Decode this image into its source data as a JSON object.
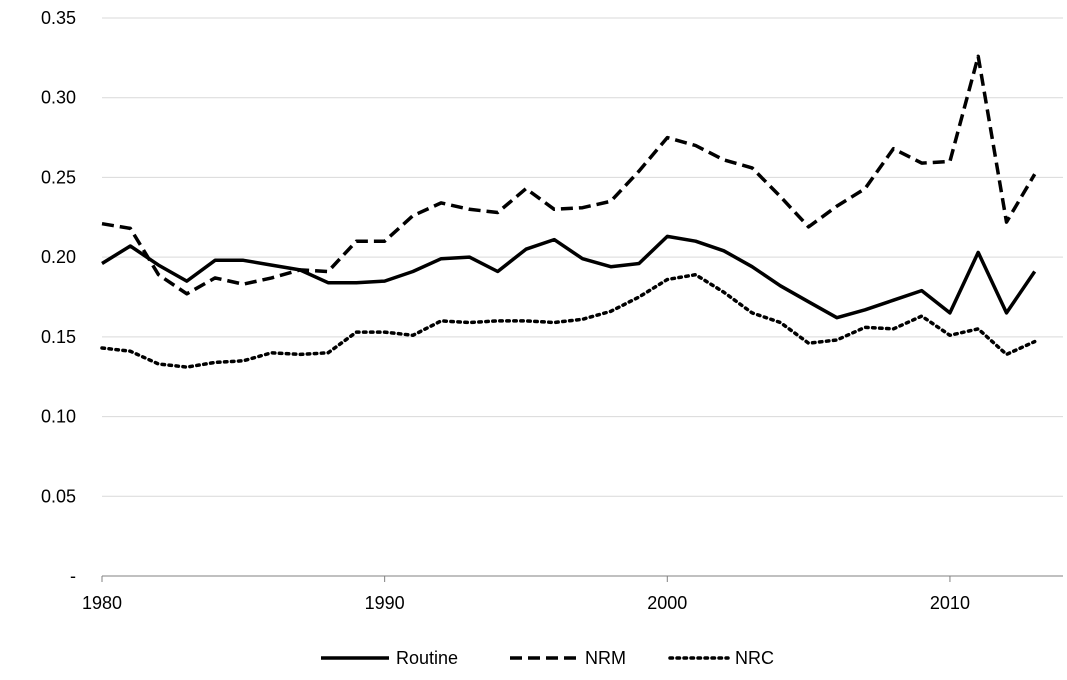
{
  "chart_data": {
    "type": "line",
    "title": "",
    "xlabel": "",
    "ylabel": "",
    "xlim": [
      1980,
      2014
    ],
    "ylim": [
      0,
      0.35
    ],
    "x_ticks": [
      1980,
      1990,
      2000,
      2010
    ],
    "x_tick_labels": [
      "1980",
      "1990",
      "2000",
      "2010"
    ],
    "y_ticks": [
      0,
      0.05,
      0.1,
      0.15,
      0.2,
      0.25,
      0.3,
      0.35
    ],
    "y_tick_labels": [
      "-",
      "0.05",
      "0.10",
      "0.15",
      "0.20",
      "0.25",
      "0.30",
      "0.35"
    ],
    "grid": "horizontal",
    "legend_position": "bottom",
    "x": [
      1980,
      1981,
      1982,
      1983,
      1984,
      1985,
      1986,
      1987,
      1988,
      1989,
      1990,
      1991,
      1992,
      1993,
      1994,
      1995,
      1996,
      1997,
      1998,
      1999,
      2000,
      2001,
      2002,
      2003,
      2004,
      2005,
      2006,
      2007,
      2008,
      2009,
      2010,
      2011,
      2012,
      2013
    ],
    "series": [
      {
        "name": "Routine",
        "style": "solid",
        "color": "#000000",
        "values": [
          0.196,
          0.207,
          0.195,
          0.185,
          0.198,
          0.198,
          0.195,
          0.192,
          0.184,
          0.184,
          0.185,
          0.191,
          0.199,
          0.2,
          0.191,
          0.205,
          0.211,
          0.199,
          0.194,
          0.196,
          0.213,
          0.21,
          0.204,
          0.194,
          0.182,
          0.172,
          0.162,
          0.167,
          0.173,
          0.179,
          0.165,
          0.203,
          0.165,
          0.191
        ]
      },
      {
        "name": "NRM",
        "style": "dashed",
        "color": "#000000",
        "values": [
          0.221,
          0.218,
          0.189,
          0.177,
          0.187,
          0.183,
          0.187,
          0.192,
          0.191,
          0.21,
          0.21,
          0.226,
          0.234,
          0.23,
          0.228,
          0.243,
          0.23,
          0.231,
          0.235,
          0.254,
          0.275,
          0.27,
          0.261,
          0.256,
          0.238,
          0.219,
          0.232,
          0.243,
          0.268,
          0.259,
          0.26,
          0.326,
          0.222,
          0.252
        ]
      },
      {
        "name": "NRC",
        "style": "dotted",
        "color": "#000000",
        "values": [
          0.143,
          0.141,
          0.133,
          0.131,
          0.134,
          0.135,
          0.14,
          0.139,
          0.14,
          0.153,
          0.153,
          0.151,
          0.16,
          0.159,
          0.16,
          0.16,
          0.159,
          0.161,
          0.166,
          0.175,
          0.186,
          0.189,
          0.178,
          0.165,
          0.159,
          0.146,
          0.148,
          0.156,
          0.155,
          0.163,
          0.151,
          0.155,
          0.139,
          0.147
        ]
      }
    ]
  }
}
